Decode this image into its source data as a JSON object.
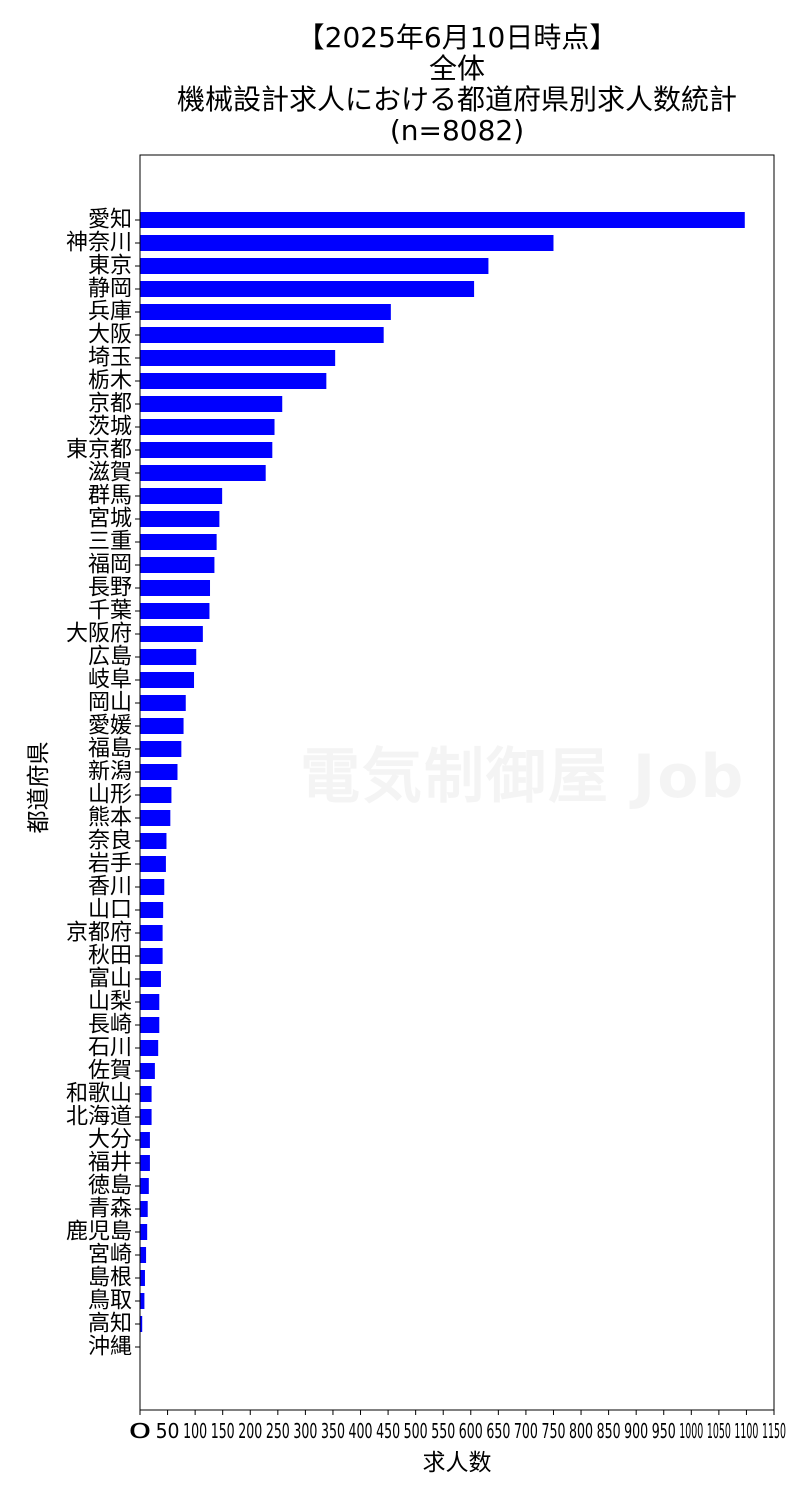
{
  "chart_data": {
    "type": "bar",
    "orientation": "horizontal",
    "title_lines": [
      "【2025年6月10日時点】",
      "全体",
      "機械設計求人における都道府県別求人数統計",
      "(n=8082)"
    ],
    "xlabel": "求人数",
    "ylabel": "都道府県",
    "xlim": [
      0,
      1150
    ],
    "xticks": [
      0,
      50,
      100,
      150,
      200,
      250,
      300,
      350,
      400,
      450,
      500,
      550,
      600,
      650,
      700,
      750,
      800,
      850,
      900,
      950,
      1000,
      1050,
      1100,
      1150
    ],
    "bar_color": "#0000ff",
    "grid": false,
    "categories": [
      "愛知",
      "神奈川",
      "東京",
      "静岡",
      "兵庫",
      "大阪",
      "埼玉",
      "栃木",
      "京都",
      "茨城",
      "東京都",
      "滋賀",
      "群馬",
      "宮城",
      "三重",
      "福岡",
      "長野",
      "千葉",
      "大阪府",
      "広島",
      "岐阜",
      "岡山",
      "愛媛",
      "福島",
      "新潟",
      "山形",
      "熊本",
      "奈良",
      "岩手",
      "香川",
      "山口",
      "京都府",
      "秋田",
      "富山",
      "山梨",
      "長崎",
      "石川",
      "佐賀",
      "和歌山",
      "北海道",
      "大分",
      "福井",
      "徳島",
      "青森",
      "鹿児島",
      "宮崎",
      "島根",
      "鳥取",
      "高知",
      "沖縄"
    ],
    "values": [
      1097,
      750,
      632,
      606,
      455,
      442,
      354,
      338,
      258,
      244,
      240,
      228,
      149,
      144,
      139,
      135,
      127,
      126,
      114,
      102,
      98,
      83,
      79,
      75,
      68,
      57,
      55,
      48,
      47,
      44,
      42,
      41,
      41,
      38,
      35,
      35,
      33,
      27,
      21,
      21,
      18,
      18,
      16,
      14,
      13,
      11,
      9,
      8,
      4,
      0
    ]
  },
  "watermark": "電気制御屋 Job"
}
